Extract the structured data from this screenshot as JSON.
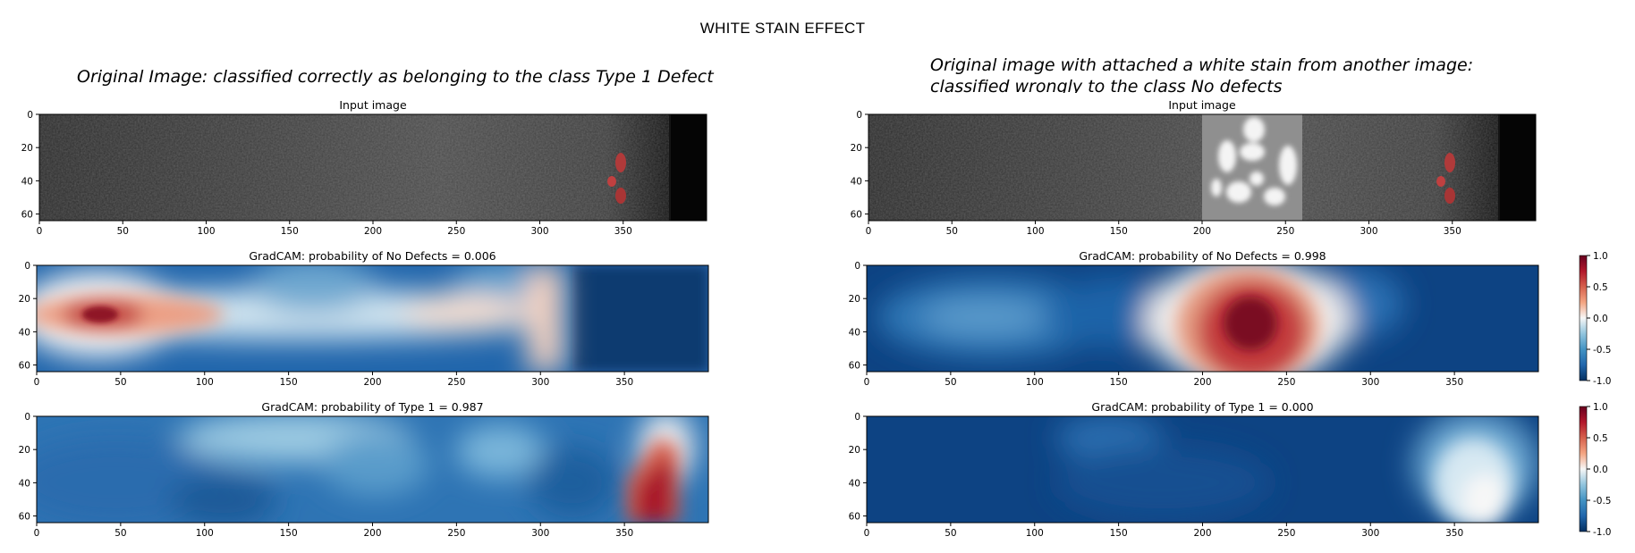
{
  "figure": {
    "title": "WHITE STAIN EFFECT",
    "left_caption": "Original Image: classified correctly as belonging to the class Type 1 Defect",
    "right_caption_line1": "Original image with attached a white stain from another image:",
    "right_caption_line2": "classified wrongly to the class No defects"
  },
  "chart_data": [
    {
      "type": "heatmap",
      "title": "Input image",
      "xlim": [
        0,
        400
      ],
      "ylim": [
        64,
        0
      ],
      "xticks": [
        0,
        50,
        100,
        150,
        200,
        250,
        300,
        350
      ],
      "yticks": [
        0,
        20,
        40,
        60
      ],
      "colormap": "grayscale photo",
      "description_features": {
        "red_defect_marks_x": [
          340,
          352
        ]
      }
    },
    {
      "type": "heatmap",
      "title": "GradCAM: probability of No Defects = 0.006",
      "xlim": [
        0,
        400
      ],
      "ylim": [
        64,
        0
      ],
      "xticks": [
        0,
        50,
        100,
        150,
        200,
        250,
        300,
        350
      ],
      "yticks": [
        0,
        20,
        40,
        60
      ],
      "colormap": "RdBu_r",
      "hotspots": [
        {
          "x": 42,
          "y": 30,
          "value": 0.9
        },
        {
          "x": 290,
          "y": 30,
          "value": 0.25
        },
        {
          "x": 250,
          "y": 28,
          "value": 0.2
        }
      ]
    },
    {
      "type": "heatmap",
      "title": "GradCAM: probability of Type 1 = 0.987",
      "xlim": [
        0,
        400
      ],
      "ylim": [
        64,
        0
      ],
      "xticks": [
        0,
        50,
        100,
        150,
        200,
        250,
        300,
        350
      ],
      "yticks": [
        0,
        20,
        40,
        60
      ],
      "colormap": "RdBu_r",
      "hotspots": [
        {
          "x": 362,
          "y": 45,
          "value": 0.9
        }
      ]
    },
    {
      "type": "heatmap",
      "title": "Input image",
      "xlim": [
        0,
        400
      ],
      "ylim": [
        64,
        0
      ],
      "xticks": [
        0,
        50,
        100,
        150,
        200,
        250,
        300,
        350
      ],
      "yticks": [
        0,
        20,
        40,
        60
      ],
      "colormap": "grayscale photo",
      "description_features": {
        "white_stain_x": [
          200,
          260
        ],
        "red_defect_marks_x": [
          340,
          352
        ]
      }
    },
    {
      "type": "heatmap",
      "title": "GradCAM: probability of No Defects = 0.998",
      "xlim": [
        0,
        400
      ],
      "ylim": [
        64,
        0
      ],
      "xticks": [
        0,
        50,
        100,
        150,
        200,
        250,
        300,
        350
      ],
      "yticks": [
        0,
        20,
        40,
        60
      ],
      "colormap": "RdBu_r",
      "colorbar": {
        "min": -1.0,
        "max": 1.0,
        "ticks": [
          1.0,
          0.5,
          0.0,
          -0.5,
          -1.0
        ]
      },
      "hotspots": [
        {
          "x": 228,
          "y": 35,
          "value": 0.95
        }
      ]
    },
    {
      "type": "heatmap",
      "title": "GradCAM: probability of Type 1 = 0.000",
      "xlim": [
        0,
        400
      ],
      "ylim": [
        64,
        0
      ],
      "xticks": [
        0,
        50,
        100,
        150,
        200,
        250,
        300,
        350
      ],
      "yticks": [
        0,
        20,
        40,
        60
      ],
      "colormap": "RdBu_r",
      "colorbar": {
        "min": -1.0,
        "max": 1.0,
        "ticks": [
          1.0,
          0.5,
          0.0,
          -0.5,
          -1.0
        ]
      },
      "hotspots": [
        {
          "x": 358,
          "y": 45,
          "value": 0.05
        }
      ]
    }
  ]
}
